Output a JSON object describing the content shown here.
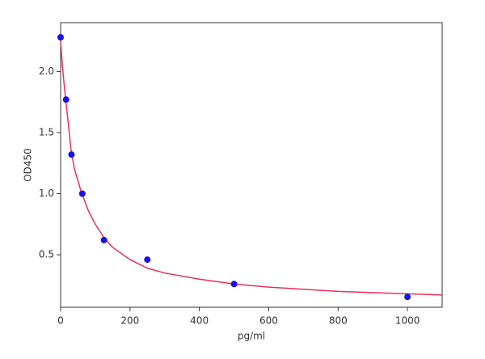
{
  "chart_data": {
    "type": "scatter",
    "xlabel": "pg/ml",
    "ylabel": "OD450",
    "x": [
      0,
      15.6,
      31.25,
      62.5,
      125,
      250,
      500,
      1000
    ],
    "values": [
      2.28,
      1.77,
      1.32,
      1.0,
      0.62,
      0.46,
      0.26,
      0.155
    ],
    "color": "#1a10e8",
    "fit": {
      "color": "#e8305a",
      "x": [
        0,
        5,
        10,
        15,
        20,
        30,
        40,
        60,
        80,
        100,
        125,
        150,
        200,
        250,
        300,
        400,
        500,
        600,
        800,
        1000,
        1100
      ],
      "values": [
        2.25,
        2.05,
        1.9,
        1.76,
        1.63,
        1.36,
        1.2,
        1.01,
        0.86,
        0.75,
        0.64,
        0.56,
        0.46,
        0.39,
        0.35,
        0.3,
        0.26,
        0.235,
        0.2,
        0.18,
        0.17
      ]
    },
    "xlim": [
      0,
      1100
    ],
    "xticks": [
      0,
      200,
      400,
      600,
      800,
      1000
    ],
    "ylim": [
      0.07,
      2.4
    ],
    "yticks": [
      0.5,
      {
        "value": 1,
        "label": "1.0"
      },
      1.5,
      {
        "value": 2,
        "label": "2.0"
      }
    ]
  }
}
